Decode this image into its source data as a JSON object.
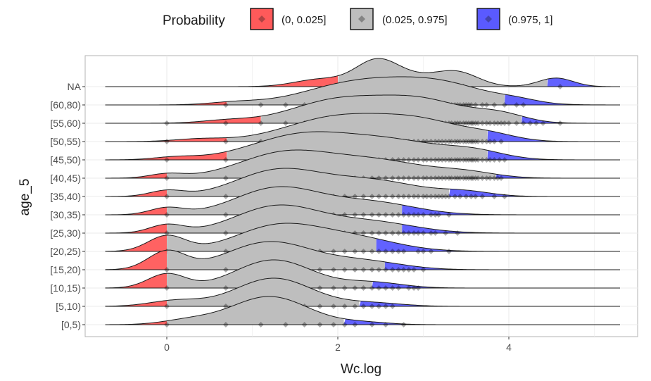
{
  "chart_data": {
    "type": "ridgeline",
    "xlabel": "Wc.log",
    "ylabel": "age_5",
    "x_ticks": [
      0,
      2,
      4
    ],
    "xlim": [
      -0.95,
      5.5
    ],
    "legend": {
      "title": "Probability",
      "position": "top",
      "entries": [
        {
          "label": "(0, 0.025]",
          "color": "#ff5a5a"
        },
        {
          "label": "(0.025, 0.975]",
          "color": "#bebebe"
        },
        {
          "label": "(0.975, 1]",
          "color": "#5a5aff"
        }
      ]
    },
    "categories": [
      "[0,5)",
      "[5,10)",
      "[10,15)",
      "[15,20)",
      "[20,25)",
      "[25,30)",
      "[30,35)",
      "[35,40)",
      "[40,45)",
      "[45,50)",
      "[50,55)",
      "[55,60)",
      "[60,80)",
      "NA"
    ],
    "series": [
      {
        "category": "[0,5)",
        "low_q": 0.0,
        "high_q": 2.07,
        "range": [
          -0.72,
          5.3
        ],
        "peaks": [
          {
            "mu": 1.2,
            "sd": 0.45,
            "h": 1.0
          },
          {
            "mu": 0.25,
            "sd": 0.3,
            "h": 0.15
          },
          {
            "mu": 2.3,
            "sd": 0.3,
            "h": 0.08
          }
        ],
        "points": [
          0,
          0.69,
          1.1,
          1.39,
          1.61,
          1.79,
          1.95,
          2.08,
          2.2,
          2.4,
          2.56,
          2.77
        ]
      },
      {
        "category": "[5,10)",
        "low_q": 0.0,
        "high_q": 2.25,
        "range": [
          -0.72,
          5.3
        ],
        "peaks": [
          {
            "mu": 1.25,
            "sd": 0.45,
            "h": 1.0
          },
          {
            "mu": 0.1,
            "sd": 0.3,
            "h": 0.2
          },
          {
            "mu": 2.4,
            "sd": 0.35,
            "h": 0.12
          }
        ],
        "points": [
          0,
          0.69,
          1.1,
          1.39,
          1.61,
          1.79,
          1.95,
          2.08,
          2.2,
          2.3,
          2.4,
          2.48,
          2.56,
          2.64
        ]
      },
      {
        "category": "[10,15)",
        "low_q": 0.0,
        "high_q": 2.4,
        "range": [
          -0.72,
          5.3
        ],
        "peaks": [
          {
            "mu": 1.25,
            "sd": 0.45,
            "h": 1.0
          },
          {
            "mu": 0.0,
            "sd": 0.22,
            "h": 0.5
          },
          {
            "mu": 2.4,
            "sd": 0.35,
            "h": 0.2
          }
        ],
        "points": [
          0,
          0.69,
          1.1,
          1.39,
          1.61,
          1.79,
          1.95,
          2.08,
          2.2,
          2.3,
          2.4,
          2.48,
          2.56,
          2.64,
          2.71,
          2.83,
          2.89,
          2.94
        ]
      },
      {
        "category": "[15,20)",
        "low_q": 0.0,
        "high_q": 2.55,
        "range": [
          -0.72,
          5.3
        ],
        "peaks": [
          {
            "mu": 1.2,
            "sd": 0.5,
            "h": 1.0
          },
          {
            "mu": 0.0,
            "sd": 0.22,
            "h": 0.65
          },
          {
            "mu": 2.3,
            "sd": 0.45,
            "h": 0.3
          }
        ],
        "points": [
          0,
          0.69,
          1.1,
          1.39,
          1.61,
          1.79,
          1.95,
          2.08,
          2.2,
          2.3,
          2.4,
          2.48,
          2.56,
          2.64,
          2.71,
          2.77,
          2.83,
          2.89,
          3.0
        ]
      },
      {
        "category": "[20,25)",
        "low_q": 0.0,
        "high_q": 2.45,
        "range": [
          -0.72,
          5.3
        ],
        "peaks": [
          {
            "mu": 1.3,
            "sd": 0.5,
            "h": 0.9
          },
          {
            "mu": 0.0,
            "sd": 0.22,
            "h": 0.55
          },
          {
            "mu": 2.2,
            "sd": 0.5,
            "h": 0.45
          }
        ],
        "points": [
          0,
          0.69,
          1.1,
          1.39,
          1.61,
          1.79,
          1.95,
          2.08,
          2.2,
          2.3,
          2.4,
          2.48,
          2.56,
          2.64,
          2.71,
          2.77,
          2.94,
          3.0,
          3.09,
          3.3
        ]
      },
      {
        "category": "[25,30)",
        "low_q": 0.0,
        "high_q": 2.75,
        "range": [
          -0.72,
          5.3
        ],
        "peaks": [
          {
            "mu": 1.3,
            "sd": 0.5,
            "h": 1.0
          },
          {
            "mu": 0.0,
            "sd": 0.2,
            "h": 0.3
          },
          {
            "mu": 2.4,
            "sd": 0.5,
            "h": 0.4
          }
        ],
        "points": [
          0,
          0.69,
          1.1,
          1.39,
          1.61,
          1.79,
          1.95,
          2.08,
          2.2,
          2.3,
          2.4,
          2.48,
          2.56,
          2.64,
          2.71,
          2.77,
          2.83,
          2.89,
          2.94,
          3.0,
          3.09,
          3.14,
          3.26,
          3.4
        ]
      },
      {
        "category": "[30,35)",
        "low_q": 0.0,
        "high_q": 2.75,
        "range": [
          -0.72,
          5.3
        ],
        "peaks": [
          {
            "mu": 1.3,
            "sd": 0.5,
            "h": 1.0
          },
          {
            "mu": 0.0,
            "sd": 0.2,
            "h": 0.25
          },
          {
            "mu": 2.4,
            "sd": 0.5,
            "h": 0.45
          }
        ],
        "points": [
          0,
          0.69,
          1.1,
          1.39,
          1.61,
          1.79,
          1.95,
          2.08,
          2.2,
          2.3,
          2.4,
          2.48,
          2.56,
          2.64,
          2.71,
          2.77,
          2.83,
          2.89,
          2.94,
          3.0,
          3.09,
          3.14,
          3.18,
          3.3
        ]
      },
      {
        "category": "[35,40)",
        "low_q": 0.0,
        "high_q": 3.3,
        "range": [
          -0.72,
          5.3
        ],
        "peaks": [
          {
            "mu": 1.3,
            "sd": 0.5,
            "h": 0.9
          },
          {
            "mu": 0.0,
            "sd": 0.2,
            "h": 0.2
          },
          {
            "mu": 2.4,
            "sd": 0.55,
            "h": 0.55
          },
          {
            "mu": 3.5,
            "sd": 0.3,
            "h": 0.15
          }
        ],
        "points": [
          0,
          0.69,
          1.1,
          1.39,
          1.61,
          1.79,
          1.95,
          2.08,
          2.2,
          2.3,
          2.4,
          2.48,
          2.56,
          2.64,
          2.71,
          2.77,
          2.83,
          2.89,
          2.94,
          3.0,
          3.04,
          3.09,
          3.14,
          3.18,
          3.22,
          3.26,
          3.3,
          3.37,
          3.43,
          3.5,
          3.56,
          3.61,
          3.69,
          3.83,
          3.95
        ]
      },
      {
        "category": "[40,45)",
        "low_q": 0.0,
        "high_q": 3.85,
        "range": [
          -0.72,
          5.3
        ],
        "peaks": [
          {
            "mu": 1.4,
            "sd": 0.55,
            "h": 0.95
          },
          {
            "mu": 0.0,
            "sd": 0.2,
            "h": 0.15
          },
          {
            "mu": 2.5,
            "sd": 0.55,
            "h": 0.6
          },
          {
            "mu": 3.5,
            "sd": 0.35,
            "h": 0.2
          }
        ],
        "points": [
          0,
          0.69,
          1.1,
          1.39,
          1.61,
          1.79,
          1.95,
          2.08,
          2.2,
          2.3,
          2.4,
          2.48,
          2.56,
          2.64,
          2.71,
          2.77,
          2.83,
          2.89,
          2.94,
          3.0,
          3.04,
          3.09,
          3.14,
          3.18,
          3.22,
          3.26,
          3.3,
          3.33,
          3.37,
          3.4,
          3.43,
          3.47,
          3.5,
          3.53,
          3.56,
          3.58,
          3.61,
          3.64,
          3.69,
          3.74,
          3.78,
          3.83,
          3.87,
          3.91
        ]
      },
      {
        "category": "[45,50)",
        "low_q": 0.7,
        "high_q": 3.75,
        "range": [
          -0.72,
          5.3
        ],
        "peaks": [
          {
            "mu": 1.6,
            "sd": 0.6,
            "h": 1.0
          },
          {
            "mu": 0.1,
            "sd": 0.25,
            "h": 0.1
          },
          {
            "mu": 2.7,
            "sd": 0.55,
            "h": 0.65
          },
          {
            "mu": 3.6,
            "sd": 0.35,
            "h": 0.3
          }
        ],
        "points": [
          0,
          0.69,
          1.1,
          1.39,
          1.61,
          1.79,
          1.95,
          2.08,
          2.2,
          2.3,
          2.4,
          2.48,
          2.56,
          2.64,
          2.71,
          2.77,
          2.83,
          2.89,
          2.94,
          3.0,
          3.04,
          3.09,
          3.14,
          3.18,
          3.22,
          3.26,
          3.3,
          3.33,
          3.37,
          3.4,
          3.43,
          3.47,
          3.5,
          3.53,
          3.56,
          3.58,
          3.61,
          3.64,
          3.69,
          3.74,
          3.78,
          3.83,
          3.89,
          3.95
        ]
      },
      {
        "category": "[50,55)",
        "low_q": 0.7,
        "high_q": 3.75,
        "range": [
          -0.72,
          5.3
        ],
        "peaks": [
          {
            "mu": 2.0,
            "sd": 0.6,
            "h": 0.95
          },
          {
            "mu": 0.4,
            "sd": 0.3,
            "h": 0.1
          },
          {
            "mu": 3.0,
            "sd": 0.5,
            "h": 0.7
          },
          {
            "mu": 3.8,
            "sd": 0.3,
            "h": 0.2
          }
        ],
        "points": [
          0,
          0.69,
          1.1,
          1.39,
          1.61,
          1.79,
          1.95,
          2.08,
          2.2,
          2.3,
          2.4,
          2.48,
          2.56,
          2.64,
          2.71,
          2.77,
          2.83,
          2.89,
          2.94,
          3.0,
          3.04,
          3.09,
          3.14,
          3.18,
          3.22,
          3.26,
          3.3,
          3.33,
          3.37,
          3.4,
          3.43,
          3.47,
          3.5,
          3.53,
          3.56,
          3.58,
          3.61,
          3.64,
          3.69,
          3.74,
          3.78,
          3.83,
          3.91
        ]
      },
      {
        "category": "[55,60)",
        "low_q": 1.1,
        "high_q": 4.15,
        "range": [
          -0.72,
          5.3
        ],
        "peaks": [
          {
            "mu": 2.0,
            "sd": 0.55,
            "h": 0.85
          },
          {
            "mu": 0.7,
            "sd": 0.3,
            "h": 0.1
          },
          {
            "mu": 3.0,
            "sd": 0.5,
            "h": 0.8
          },
          {
            "mu": 3.9,
            "sd": 0.3,
            "h": 0.3
          }
        ],
        "points": [
          0,
          0.69,
          1.1,
          1.39,
          1.61,
          1.79,
          1.95,
          2.08,
          2.2,
          2.3,
          2.4,
          2.48,
          2.56,
          2.64,
          2.71,
          2.77,
          2.83,
          2.89,
          2.94,
          3.0,
          3.04,
          3.09,
          3.14,
          3.18,
          3.22,
          3.26,
          3.3,
          3.33,
          3.37,
          3.4,
          3.43,
          3.47,
          3.5,
          3.53,
          3.56,
          3.58,
          3.61,
          3.64,
          3.69,
          3.74,
          3.78,
          3.83,
          3.87,
          3.91,
          3.95,
          4.0,
          4.09,
          4.17,
          4.25,
          4.32,
          4.4,
          4.6
        ]
      },
      {
        "category": "[60,80)",
        "low_q": 0.7,
        "high_q": 3.95,
        "range": [
          -0.72,
          5.3
        ],
        "peaks": [
          {
            "mu": 2.2,
            "sd": 0.6,
            "h": 0.85
          },
          {
            "mu": 0.8,
            "sd": 0.3,
            "h": 0.1
          },
          {
            "mu": 3.2,
            "sd": 0.55,
            "h": 0.8
          },
          {
            "mu": 4.1,
            "sd": 0.25,
            "h": 0.12
          }
        ],
        "points": [
          0.69,
          1.1,
          1.39,
          1.61,
          1.79,
          1.95,
          2.08,
          2.2,
          2.3,
          2.4,
          2.48,
          2.56,
          2.64,
          2.71,
          2.77,
          2.83,
          2.89,
          2.94,
          3.0,
          3.04,
          3.09,
          3.14,
          3.18,
          3.22,
          3.26,
          3.3,
          3.33,
          3.37,
          3.4,
          3.43,
          3.47,
          3.5,
          3.53,
          3.56,
          3.61,
          3.69,
          3.74,
          3.83,
          3.95,
          4.09,
          4.17
        ]
      },
      {
        "category": "NA",
        "low_q": 2.0,
        "high_q": 4.45,
        "range": [
          -0.72,
          5.3
        ],
        "peaks": [
          {
            "mu": 2.45,
            "sd": 0.25,
            "h": 1.0
          },
          {
            "mu": 1.8,
            "sd": 0.3,
            "h": 0.3
          },
          {
            "mu": 3.4,
            "sd": 0.25,
            "h": 0.55
          },
          {
            "mu": 4.55,
            "sd": 0.2,
            "h": 0.35
          },
          {
            "mu": 2.9,
            "sd": 0.3,
            "h": 0.35
          }
        ],
        "points": [
          2.3,
          2.48,
          2.56,
          2.64,
          2.71,
          2.77,
          3.4,
          3.47,
          4.6
        ]
      }
    ]
  }
}
